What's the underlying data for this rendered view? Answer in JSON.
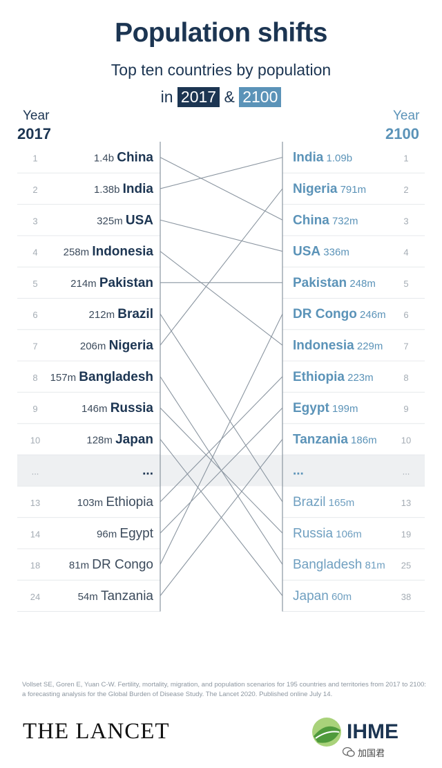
{
  "header": {
    "title": "Population shifts",
    "subtitle": "Top ten countries by population",
    "subtitle_prefix": "in",
    "subtitle_join": "&",
    "year_a": "2017",
    "year_b": "2100"
  },
  "axis_left": {
    "label": "Year",
    "year": "2017"
  },
  "axis_right": {
    "label": "Year",
    "year": "2100"
  },
  "colors": {
    "dark": "#1c3552",
    "light": "#5b93b8",
    "rank": "#a4acb4",
    "line": "#8a95a0",
    "divider": "#e6e9ec",
    "gap_row": "#eef0f2"
  },
  "chart_data": {
    "type": "slope",
    "left": [
      {
        "rank": "1",
        "value": "1.4b",
        "country": "China",
        "top10": true
      },
      {
        "rank": "2",
        "value": "1.38b",
        "country": "India",
        "top10": true
      },
      {
        "rank": "3",
        "value": "325m",
        "country": "USA",
        "top10": true
      },
      {
        "rank": "4",
        "value": "258m",
        "country": "Indonesia",
        "top10": true
      },
      {
        "rank": "5",
        "value": "214m",
        "country": "Pakistan",
        "top10": true
      },
      {
        "rank": "6",
        "value": "212m",
        "country": "Brazil",
        "top10": true
      },
      {
        "rank": "7",
        "value": "206m",
        "country": "Nigeria",
        "top10": true
      },
      {
        "rank": "8",
        "value": "157m",
        "country": "Bangladesh",
        "top10": true
      },
      {
        "rank": "9",
        "value": "146m",
        "country": "Russia",
        "top10": true
      },
      {
        "rank": "10",
        "value": "128m",
        "country": "Japan",
        "top10": true
      },
      {
        "rank": "...",
        "value": "",
        "country": "...",
        "top10": true,
        "gap": true
      },
      {
        "rank": "13",
        "value": "103m",
        "country": "Ethiopia",
        "top10": false
      },
      {
        "rank": "14",
        "value": "96m",
        "country": "Egypt",
        "top10": false
      },
      {
        "rank": "18",
        "value": "81m",
        "country": "DR Congo",
        "top10": false
      },
      {
        "rank": "24",
        "value": "54m",
        "country": "Tanzania",
        "top10": false
      }
    ],
    "right": [
      {
        "rank": "1",
        "value": "1.09b",
        "country": "India",
        "top10": true
      },
      {
        "rank": "2",
        "value": "791m",
        "country": "Nigeria",
        "top10": true
      },
      {
        "rank": "3",
        "value": "732m",
        "country": "China",
        "top10": true
      },
      {
        "rank": "4",
        "value": "336m",
        "country": "USA",
        "top10": true
      },
      {
        "rank": "5",
        "value": "248m",
        "country": "Pakistan",
        "top10": true
      },
      {
        "rank": "6",
        "value": "246m",
        "country": "DR Congo",
        "top10": true
      },
      {
        "rank": "7",
        "value": "229m",
        "country": "Indonesia",
        "top10": true
      },
      {
        "rank": "8",
        "value": "223m",
        "country": "Ethiopia",
        "top10": true
      },
      {
        "rank": "9",
        "value": "199m",
        "country": "Egypt",
        "top10": true
      },
      {
        "rank": "10",
        "value": "186m",
        "country": "Tanzania",
        "top10": true
      },
      {
        "rank": "...",
        "value": "",
        "country": "...",
        "top10": true,
        "gap": true
      },
      {
        "rank": "13",
        "value": "165m",
        "country": "Brazil",
        "top10": false
      },
      {
        "rank": "19",
        "value": "106m",
        "country": "Russia",
        "top10": false
      },
      {
        "rank": "25",
        "value": "81m",
        "country": "Bangladesh",
        "top10": false
      },
      {
        "rank": "38",
        "value": "60m",
        "country": "Japan",
        "top10": false
      }
    ]
  },
  "footer": {
    "reference": "Vollset SE, Goren E, Yuan C-W. Fertility, mortality, migration, and population scenarios for 195 countries and territories from 2017 to 2100: a forecasting analysis for the Global Burden of Disease Study. The Lancet 2020. Published online July 14.",
    "publisher": "THE LANCET",
    "partner": "IHME",
    "partner_logo_icon": "ihme-leaf-icon",
    "watermark": "加国君",
    "watermark_icon": "wechat-icon"
  }
}
